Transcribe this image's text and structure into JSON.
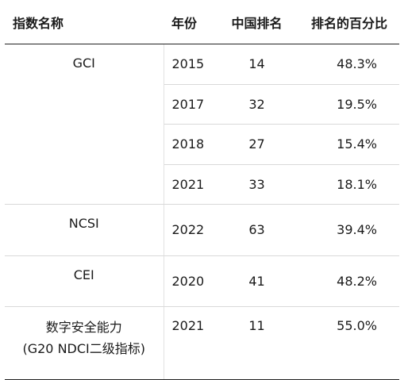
{
  "table": {
    "headers": {
      "name": "指数名称",
      "year": "年份",
      "rank": "中国排名",
      "percent": "排名的百分比"
    },
    "groups": [
      {
        "index_name_lines": [
          "GCI"
        ],
        "rows": [
          {
            "year": "2015",
            "rank": "14",
            "percent": "48.3%"
          },
          {
            "year": "2017",
            "rank": "32",
            "percent": "19.5%"
          },
          {
            "year": "2018",
            "rank": "27",
            "percent": "15.4%"
          },
          {
            "year": "2021",
            "rank": "33",
            "percent": "18.1%"
          }
        ]
      },
      {
        "index_name_lines": [
          "NCSI"
        ],
        "rows": [
          {
            "year": "2022",
            "rank": "63",
            "percent": "39.4%"
          }
        ]
      },
      {
        "index_name_lines": [
          "CEI"
        ],
        "rows": [
          {
            "year": "2020",
            "rank": "41",
            "percent": "48.2%"
          }
        ]
      },
      {
        "index_name_lines": [
          "数字安全能力",
          "(G20 NDCI二级指标)"
        ],
        "rows": [
          {
            "year": "2021",
            "rank": "11",
            "percent": "55.0%"
          }
        ]
      }
    ]
  }
}
